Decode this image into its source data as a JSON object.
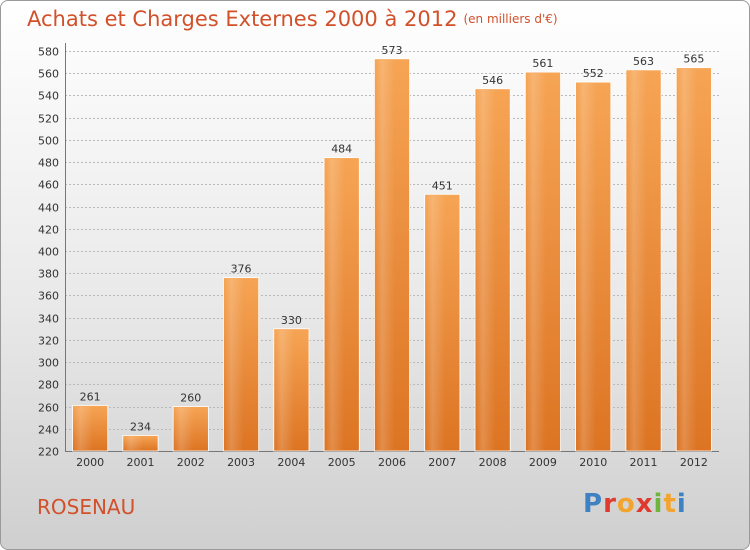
{
  "header": {
    "title": "Achats et Charges Externes 2000 à 2012",
    "unit": "(en milliers d'€)"
  },
  "footer": {
    "place": "ROSENAU",
    "logo": "Proxiti",
    "logo_colors": [
      "#3e82c4",
      "#e03a2e",
      "#f3a42c",
      "#e03a2e",
      "#6fb43f",
      "#f3a42c",
      "#3e82c4"
    ]
  },
  "colors": {
    "bar_top": "#f6a555",
    "bar_bottom": "#dc7423",
    "text_accent": "#d2502a",
    "grid": "#b9b9b9"
  },
  "chart_data": {
    "type": "bar",
    "title": "Achats et Charges Externes 2000 à 2012",
    "subtitle": "(en milliers d'€)",
    "xlabel": "",
    "ylabel": "",
    "categories": [
      "2000",
      "2001",
      "2002",
      "2003",
      "2004",
      "2005",
      "2006",
      "2007",
      "2008",
      "2009",
      "2010",
      "2011",
      "2012"
    ],
    "values": [
      261,
      234,
      260,
      376,
      330,
      484,
      573,
      451,
      546,
      561,
      552,
      563,
      565
    ],
    "ylim": [
      220,
      580
    ],
    "yticks": [
      220,
      240,
      260,
      280,
      300,
      320,
      340,
      360,
      380,
      400,
      420,
      440,
      460,
      480,
      500,
      520,
      540,
      560,
      580
    ],
    "grid": true,
    "legend": "none"
  }
}
